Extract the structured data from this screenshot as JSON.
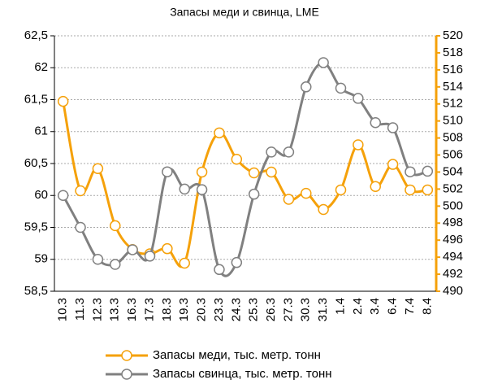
{
  "chart_data": {
    "type": "line",
    "title": "Запасы меди и свинца, LME",
    "categories": [
      "10.3",
      "11.3",
      "12.3",
      "13.3",
      "16.3",
      "17.3",
      "18.3",
      "19.3",
      "20.3",
      "23.3",
      "24.3",
      "25.3",
      "26.3",
      "27.3",
      "30.3",
      "31.3",
      "1.4",
      "2.4",
      "3.4",
      "6.4",
      "7.4",
      "8.4"
    ],
    "series": [
      {
        "name": "Запасы меди, тыс. метр. тонн",
        "color": "#f5a10a",
        "axis": "y2",
        "values": [
          512.3,
          501.8,
          504.4,
          497.7,
          494.9,
          494.4,
          495.0,
          493.3,
          504.0,
          508.6,
          505.5,
          503.9,
          504.0,
          500.8,
          501.5,
          499.6,
          501.9,
          507.2,
          502.3,
          504.9,
          501.9,
          501.9
        ]
      },
      {
        "name": "Запасы свинца, тыс. метр. тонн",
        "color": "#808080",
        "values": [
          60.0,
          59.5,
          59.0,
          58.92,
          59.15,
          59.05,
          60.37,
          60.1,
          60.09,
          58.84,
          58.95,
          60.02,
          60.68,
          60.68,
          61.7,
          62.08,
          61.68,
          61.52,
          61.14,
          61.06,
          60.37,
          60.38
        ]
      }
    ],
    "ylim": [
      58.5,
      62.5
    ],
    "yticks": [
      {
        "value": 58.5,
        "label": "58,5"
      },
      59,
      {
        "value": 59.5,
        "label": "59,5"
      },
      60,
      {
        "value": 60.5,
        "label": "60,5"
      },
      61,
      {
        "value": 61.5,
        "label": "61,5"
      },
      62,
      {
        "value": 62.5,
        "label": "62,5"
      }
    ],
    "y2lim": [
      490,
      520
    ],
    "y2ticks": [
      490,
      492,
      494,
      496,
      498,
      500,
      502,
      504,
      506,
      508,
      510,
      512,
      514,
      516,
      518,
      520
    ],
    "y2color": "#f5a10a",
    "grid": true,
    "legend": "bottom"
  }
}
